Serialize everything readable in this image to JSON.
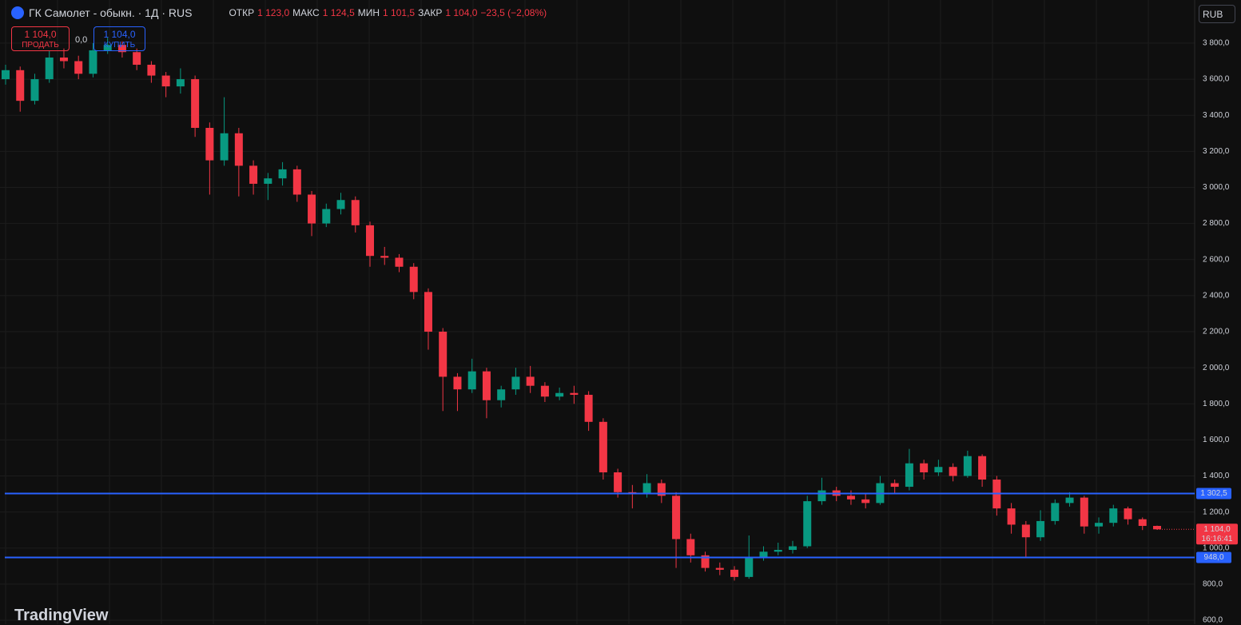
{
  "header": {
    "symbol": "ГК Самолет - обыкн. · 1Д · RUS",
    "ohlc": [
      {
        "label": "ОТКР",
        "value": "1 123,0"
      },
      {
        "label": "МАКС",
        "value": "1 124,5"
      },
      {
        "label": "МИН",
        "value": "1 101,5"
      },
      {
        "label": "ЗАКР",
        "value": "1 104,0"
      }
    ],
    "change": "−23,5 (−2,08%)"
  },
  "trade": {
    "sell_price": "1 104,0",
    "sell_label": "ПРОДАТЬ",
    "spread": "0,0",
    "buy_price": "1 104,0",
    "buy_label": "КУПИТЬ"
  },
  "currency": "RUB",
  "brand": "TradingView",
  "chart_data": {
    "type": "candlestick",
    "up_color": "#089981",
    "down_color": "#f23645",
    "ylim": [
      578,
      4039
    ],
    "yticks": [
      {
        "value": 600,
        "label": "600,0"
      },
      {
        "value": 800,
        "label": "800,0"
      },
      {
        "value": 1000,
        "label": "1 000,0"
      },
      {
        "value": 1200,
        "label": "1 200,0"
      },
      {
        "value": 1400,
        "label": "1 400,0"
      },
      {
        "value": 1600,
        "label": "1 600,0"
      },
      {
        "value": 1800,
        "label": "1 800,0"
      },
      {
        "value": 2000,
        "label": "2 000,0"
      },
      {
        "value": 2200,
        "label": "2 200,0"
      },
      {
        "value": 2400,
        "label": "2 400,0"
      },
      {
        "value": 2600,
        "label": "2 600,0"
      },
      {
        "value": 2800,
        "label": "2 800,0"
      },
      {
        "value": 3000,
        "label": "3 000,0"
      },
      {
        "value": 3200,
        "label": "3 200,0"
      },
      {
        "value": 3400,
        "label": "3 400,0"
      },
      {
        "value": 3600,
        "label": "3 600,0"
      },
      {
        "value": 3800,
        "label": "3 800,0"
      }
    ],
    "grid": true,
    "open": [
      3600,
      3650,
      3480,
      3600,
      3720,
      3700,
      3630,
      3760,
      3790,
      3750,
      3680,
      3620,
      3560,
      3600,
      3330,
      3150,
      3300,
      3120,
      3020,
      3050,
      3100,
      2960,
      2800,
      2880,
      2930,
      2790,
      2620,
      2610,
      2560,
      2420,
      2200,
      1950,
      1880,
      1980,
      1820,
      1880,
      1950,
      1900,
      1840,
      1860,
      1850,
      1700,
      1420,
      1310,
      1300,
      1360,
      1290,
      1050,
      960,
      890,
      880,
      840,
      950,
      980,
      990,
      1010,
      1260,
      1320,
      1290,
      1270,
      1250,
      1360,
      1340,
      1470,
      1420,
      1450,
      1400,
      1510,
      1380,
      1220,
      1130,
      1060,
      1150,
      1250,
      1280,
      1120,
      1140,
      1220,
      1160,
      1123
    ],
    "high": [
      3680,
      3670,
      3630,
      3760,
      3770,
      3730,
      3800,
      3830,
      3810,
      3770,
      3700,
      3640,
      3660,
      3620,
      3360,
      3500,
      3330,
      3150,
      3080,
      3140,
      3120,
      2980,
      2910,
      2970,
      2950,
      2810,
      2670,
      2630,
      2580,
      2440,
      2220,
      1970,
      2050,
      2000,
      1900,
      2000,
      2010,
      1920,
      1890,
      1900,
      1870,
      1720,
      1440,
      1350,
      1410,
      1380,
      1310,
      1080,
      980,
      920,
      900,
      1070,
      1010,
      1030,
      1040,
      1290,
      1390,
      1340,
      1320,
      1300,
      1400,
      1380,
      1550,
      1490,
      1490,
      1470,
      1540,
      1520,
      1400,
      1250,
      1150,
      1210,
      1270,
      1310,
      1290,
      1170,
      1240,
      1230,
      1170,
      1124.5
    ],
    "low": [
      3570,
      3420,
      3460,
      3580,
      3660,
      3600,
      3610,
      3740,
      3720,
      3650,
      3580,
      3500,
      3520,
      3280,
      2960,
      3120,
      2950,
      2960,
      2930,
      3010,
      2920,
      2730,
      2780,
      2850,
      2750,
      2560,
      2570,
      2530,
      2380,
      2100,
      1760,
      1760,
      1860,
      1720,
      1780,
      1850,
      1860,
      1810,
      1820,
      1800,
      1650,
      1380,
      1280,
      1220,
      1280,
      1250,
      890,
      920,
      870,
      850,
      820,
      830,
      930,
      960,
      970,
      1000,
      1240,
      1260,
      1240,
      1220,
      1240,
      1300,
      1320,
      1380,
      1400,
      1370,
      1390,
      1340,
      1180,
      1080,
      950,
      1040,
      1130,
      1230,
      1080,
      1080,
      1120,
      1130,
      1100,
      1101.5
    ],
    "close": [
      3650,
      3480,
      3600,
      3720,
      3700,
      3630,
      3760,
      3790,
      3750,
      3680,
      3620,
      3560,
      3600,
      3330,
      3150,
      3300,
      3120,
      3020,
      3050,
      3100,
      2960,
      2800,
      2880,
      2930,
      2790,
      2620,
      2610,
      2560,
      2420,
      2200,
      1950,
      1880,
      1980,
      1820,
      1880,
      1950,
      1900,
      1840,
      1860,
      1850,
      1700,
      1420,
      1310,
      1300,
      1360,
      1290,
      1050,
      960,
      890,
      880,
      840,
      950,
      980,
      990,
      1010,
      1260,
      1320,
      1290,
      1270,
      1250,
      1360,
      1340,
      1470,
      1420,
      1450,
      1400,
      1510,
      1380,
      1220,
      1130,
      1060,
      1150,
      1250,
      1280,
      1120,
      1140,
      1220,
      1160,
      1123,
      1104
    ],
    "hlines": {
      "values": [
        1302.5,
        948
      ],
      "value_labels": [
        "1 302,5",
        "948,0"
      ],
      "color": "#2962ff"
    },
    "last_price": {
      "value": 1104,
      "label": "1 104,0",
      "countdown": "16:16:41"
    }
  }
}
